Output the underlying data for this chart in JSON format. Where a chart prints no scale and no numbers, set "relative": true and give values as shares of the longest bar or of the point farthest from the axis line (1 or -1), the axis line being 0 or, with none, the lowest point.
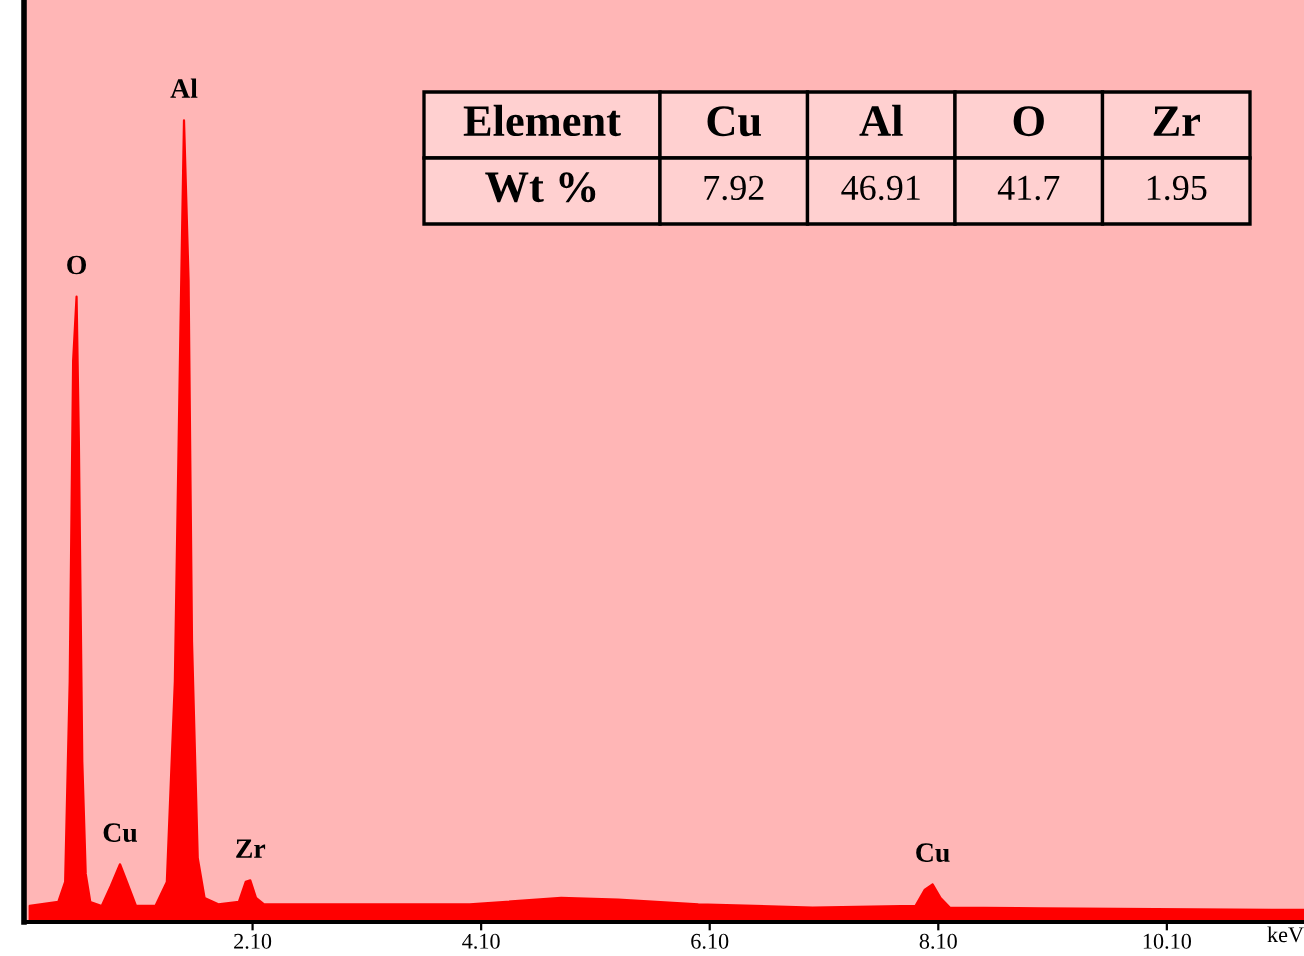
{
  "chart_data": {
    "type": "area",
    "relative": true,
    "xlabel": "keV",
    "x": [
      0.15,
      0.4,
      0.46,
      0.5,
      0.53,
      0.56,
      0.58,
      0.61,
      0.64,
      0.68,
      0.78,
      0.86,
      0.94,
      1.0,
      1.08,
      1.25,
      1.35,
      1.42,
      1.47,
      1.5,
      1.54,
      1.57,
      1.62,
      1.68,
      1.8,
      1.98,
      2.04,
      2.08,
      2.13,
      2.2,
      3.0,
      4.0,
      4.8,
      5.3,
      6.0,
      7.0,
      7.9,
      7.98,
      8.05,
      8.12,
      8.2,
      9.0,
      10.0,
      11.3
    ],
    "series": [
      {
        "color": "#ff0000",
        "values": [
          0.02,
          0.025,
          0.05,
          0.3,
          0.7,
          0.78,
          0.6,
          0.2,
          0.06,
          0.025,
          0.02,
          0.045,
          0.072,
          0.05,
          0.02,
          0.02,
          0.05,
          0.3,
          0.75,
          1.0,
          0.8,
          0.35,
          0.08,
          0.03,
          0.022,
          0.025,
          0.05,
          0.052,
          0.03,
          0.022,
          0.022,
          0.022,
          0.03,
          0.028,
          0.022,
          0.018,
          0.02,
          0.04,
          0.047,
          0.03,
          0.018,
          0.017,
          0.016,
          0.015
        ]
      }
    ],
    "xlim": [
      0.1,
      11.3
    ],
    "xticks": [
      {
        "value": 2.1,
        "label": "2.10"
      },
      {
        "value": 4.1,
        "label": "4.10"
      },
      {
        "value": 6.1,
        "label": "6.10"
      },
      {
        "value": 8.1,
        "label": "8.10"
      },
      {
        "value": 10.1,
        "label": "10.10"
      }
    ],
    "annotations": [
      {
        "text": "O",
        "x": 0.56,
        "y": 0.78
      },
      {
        "text": "Al",
        "x": 1.5,
        "y": 1.0
      },
      {
        "text": "Cu",
        "x": 0.94,
        "y": 0.072
      },
      {
        "text": "Zr",
        "x": 2.08,
        "y": 0.052
      },
      {
        "text": "Cu",
        "x": 8.05,
        "y": 0.047
      },
      "Element",
      "Cu",
      "Al",
      "O",
      "Zr",
      "Wt %",
      "7.92",
      "46.91",
      "41.7",
      "1.95"
    ]
  }
}
